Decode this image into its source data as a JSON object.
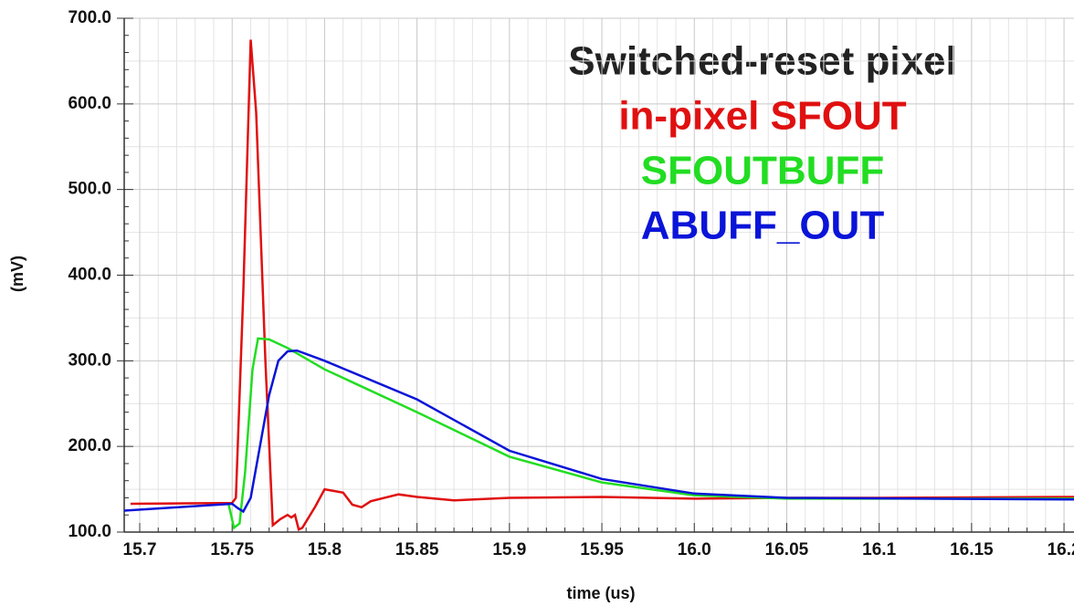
{
  "chart_data": {
    "type": "line",
    "title": "Switched-reset pixel",
    "xlabel": "time (us)",
    "ylabel": "(mV)",
    "xlim": [
      15.6916,
      16.2054
    ],
    "ylim": [
      100,
      700
    ],
    "xticks": [
      15.7,
      15.75,
      15.8,
      15.85,
      15.9,
      15.95,
      {
        "value": 16.0,
        "label": "16.0"
      },
      16.05,
      16.1,
      16.15,
      16.2
    ],
    "yticks": [
      {
        "value": 100,
        "label": "100.0"
      },
      {
        "value": 200,
        "label": "200.0"
      },
      {
        "value": 300,
        "label": "300.0"
      },
      {
        "value": 400,
        "label": "400.0"
      },
      {
        "value": 500,
        "label": "500.0"
      },
      {
        "value": 600,
        "label": "600.0"
      },
      {
        "value": 700,
        "label": "700.0"
      }
    ],
    "grid": true,
    "series": [
      {
        "name": "in-pixel SFOUT",
        "color": "#e01010",
        "x": [
          15.695,
          15.75,
          15.752,
          15.756,
          15.76,
          15.763,
          15.768,
          15.772,
          15.776,
          15.78,
          15.782,
          15.784,
          15.786,
          15.788,
          15.795,
          15.8,
          15.81,
          15.815,
          15.82,
          15.825,
          15.84,
          15.85,
          15.87,
          15.9,
          15.95,
          16.0,
          16.05,
          16.1,
          16.2054
        ],
        "values": [
          133,
          134,
          140,
          380,
          675,
          590,
          300,
          108,
          115,
          120,
          117,
          120,
          103,
          105,
          130,
          150,
          146,
          132,
          129,
          136,
          144,
          141,
          137,
          140,
          141,
          139,
          140,
          140,
          141
        ]
      },
      {
        "name": "SFOUTBUFF",
        "color": "#22dd22",
        "x": [
          15.748,
          15.751,
          15.754,
          15.757,
          15.761,
          15.764,
          15.77,
          15.78,
          15.8,
          15.85,
          15.9,
          15.95,
          16.0,
          16.05,
          16.2054
        ],
        "values": [
          133,
          105,
          110,
          170,
          290,
          326,
          325,
          315,
          290,
          240,
          188,
          158,
          143,
          139,
          139
        ]
      },
      {
        "name": "ABUFF_OUT",
        "color": "#0a14d8",
        "x": [
          15.6916,
          15.75,
          15.753,
          15.756,
          15.76,
          15.765,
          15.77,
          15.775,
          15.78,
          15.785,
          15.8,
          15.85,
          15.9,
          15.95,
          16.0,
          16.05,
          16.2054
        ],
        "values": [
          125,
          133,
          128,
          124,
          140,
          200,
          260,
          300,
          311,
          312,
          300,
          255,
          195,
          162,
          145,
          140,
          138
        ]
      }
    ]
  }
}
